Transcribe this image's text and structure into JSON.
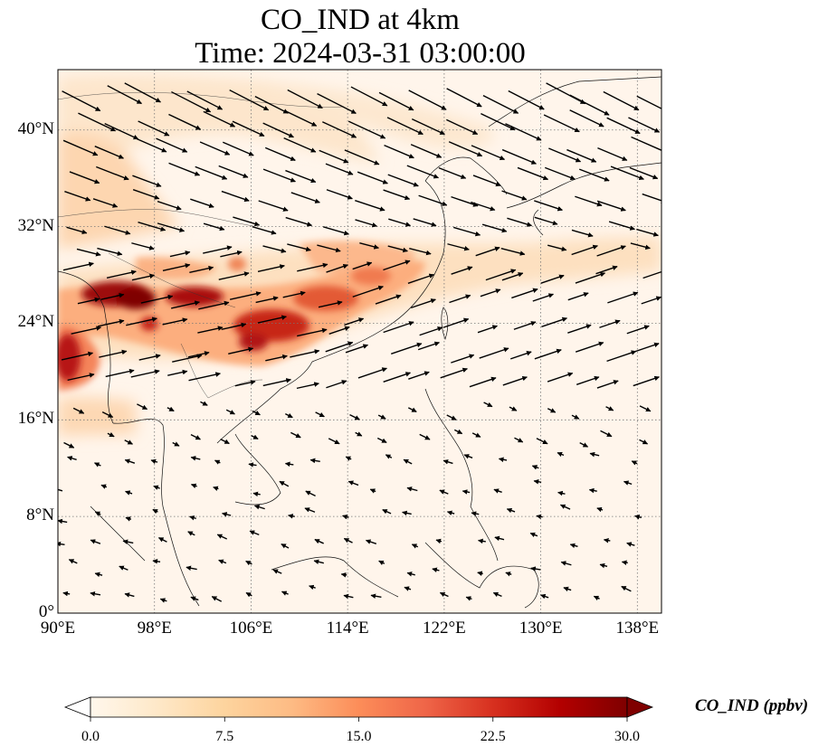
{
  "title": {
    "line1": "CO_IND at 4km",
    "line2": "Time: 2024-03-31 03:00:00"
  },
  "map": {
    "extent": {
      "lon_min": 90,
      "lon_max": 140,
      "lat_min": 0,
      "lat_max": 45
    },
    "lat_ticks": [
      {
        "value": 0,
        "label": "0°"
      },
      {
        "value": 8,
        "label": "8°N"
      },
      {
        "value": 16,
        "label": "16°N"
      },
      {
        "value": 24,
        "label": "24°N"
      },
      {
        "value": 32,
        "label": "32°N"
      },
      {
        "value": 40,
        "label": "40°N"
      }
    ],
    "lon_ticks": [
      {
        "value": 90,
        "label": "90°E"
      },
      {
        "value": 98,
        "label": "98°E"
      },
      {
        "value": 106,
        "label": "106°E"
      },
      {
        "value": 114,
        "label": "114°E"
      },
      {
        "value": 122,
        "label": "122°E"
      },
      {
        "value": 130,
        "label": "130°E"
      },
      {
        "value": 138,
        "label": "138°E"
      }
    ],
    "gridlines": "dotted",
    "background_color": "#fff5eb",
    "high_concentration_regions": [
      {
        "lon": 91.5,
        "lat": 21.0,
        "value": 30
      },
      {
        "lon": 95.5,
        "lat": 26.5,
        "value": 30
      },
      {
        "lon": 102.0,
        "lat": 26.0,
        "value": 27
      },
      {
        "lon": 108.5,
        "lat": 23.5,
        "value": 25
      },
      {
        "lon": 113.5,
        "lat": 24.5,
        "value": 20
      },
      {
        "lon": 117.0,
        "lat": 28.0,
        "value": 16
      },
      {
        "lon": 91.0,
        "lat": 29.5,
        "value": 10
      },
      {
        "lon": 95.0,
        "lat": 41.0,
        "value": 6
      },
      {
        "lon": 130.0,
        "lat": 29.5,
        "value": 6
      }
    ],
    "wind_vectors": "southwesterly flow across southern China turning westerly/northwesterly over northern China and Japan; weak northeasterly flow south of 16°N"
  },
  "colorbar": {
    "label": "CO_IND (ppbv)",
    "min": 0.0,
    "max": 30.0,
    "ticks": [
      "0.0",
      "7.5",
      "15.0",
      "22.5",
      "30.0"
    ],
    "colormap": "OrRd",
    "stops": [
      "#fff7ec",
      "#fee8c8",
      "#fdd49e",
      "#fdbb84",
      "#fc8d59",
      "#ef6548",
      "#d7301f",
      "#b30000",
      "#7f0000"
    ],
    "extend": "both"
  }
}
